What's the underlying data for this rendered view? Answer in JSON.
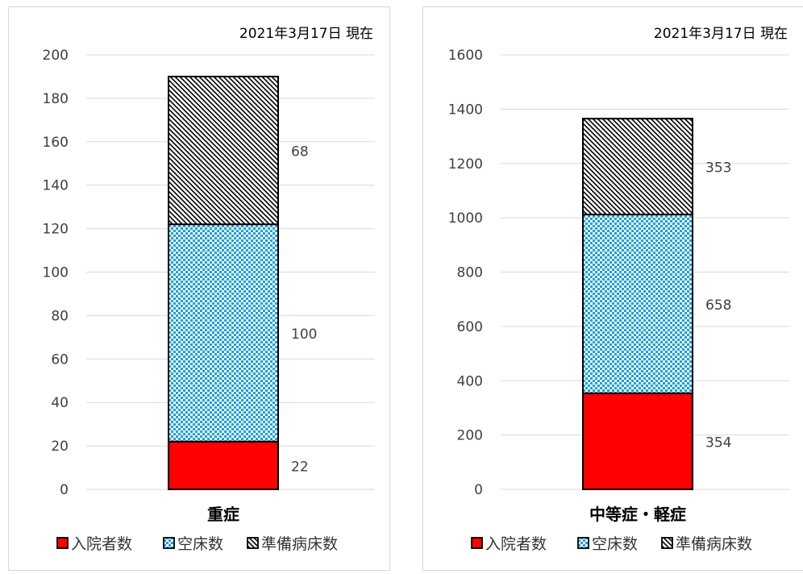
{
  "colors": {
    "admitted": "#ff0000",
    "vacant_fg": "#1aa0dc",
    "vacant_bg": "#ffffff",
    "prep_fg": "#000000",
    "prep_bg": "#ffffff",
    "grid": "#d9d9d9"
  },
  "chart_data": [
    {
      "type": "bar",
      "stacked": true,
      "title": "2021年3月17日 現在",
      "categories": [
        "重症"
      ],
      "ylim": [
        0,
        200
      ],
      "yticks": [
        "0",
        "20",
        "40",
        "60",
        "80",
        "100",
        "120",
        "140",
        "160",
        "180",
        "200"
      ],
      "series": [
        {
          "name": "入院者数",
          "values": [
            22
          ],
          "labels": [
            "22"
          ]
        },
        {
          "name": "空床数",
          "values": [
            100
          ],
          "labels": [
            "100"
          ]
        },
        {
          "name": "準備病床数",
          "values": [
            68
          ],
          "labels": [
            "68"
          ]
        }
      ],
      "grid": true,
      "legend": "bottom"
    },
    {
      "type": "bar",
      "stacked": true,
      "title": "2021年3月17日 現在",
      "categories": [
        "中等症・軽症"
      ],
      "ylim": [
        0,
        1600
      ],
      "yticks": [
        "0",
        "200",
        "400",
        "600",
        "800",
        "1000",
        "1200",
        "1400",
        "1600"
      ],
      "series": [
        {
          "name": "入院者数",
          "values": [
            354
          ],
          "labels": [
            "354"
          ]
        },
        {
          "name": "空床数",
          "values": [
            658
          ],
          "labels": [
            "658"
          ]
        },
        {
          "name": "準備病床数",
          "values": [
            353
          ],
          "labels": [
            "353"
          ]
        }
      ],
      "grid": true,
      "legend": "bottom"
    }
  ]
}
